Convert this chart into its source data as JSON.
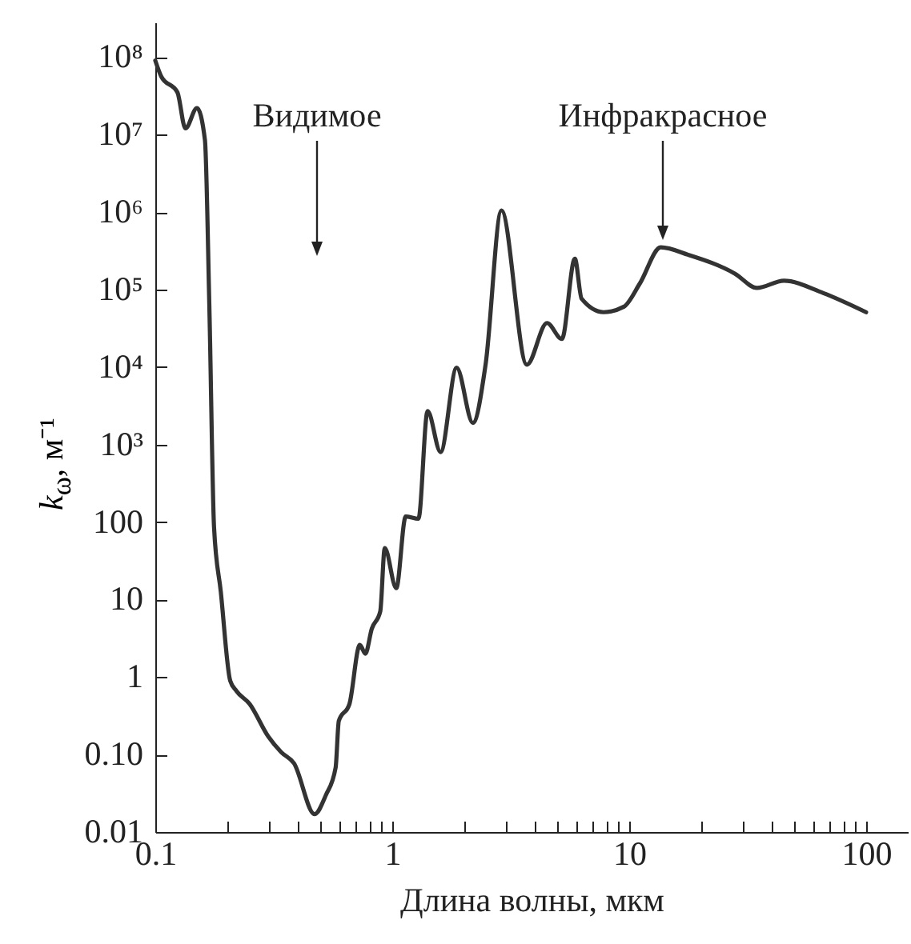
{
  "chart_data": {
    "type": "line",
    "xlabel": "Длина волны, мкм",
    "ylabel": "k$_{ω}$, м⁻¹",
    "log": "xy",
    "grid": false,
    "annotations": [
      "Видимое",
      "Инфракрасное"
    ],
    "xlim": [
      0.1,
      150
    ],
    "ylim": [
      0.01,
      280000000
    ],
    "xticks": [
      0.1,
      {
        "value": 0.2,
        "label": null
      },
      {
        "value": 0.3,
        "label": null
      },
      {
        "value": 0.4,
        "label": null
      },
      {
        "value": 0.5,
        "label": null
      },
      {
        "value": 0.6,
        "label": null
      },
      {
        "value": 0.7,
        "label": null
      },
      {
        "value": 0.8,
        "label": null
      },
      {
        "value": 0.9,
        "label": null
      },
      1,
      {
        "value": 2,
        "label": null
      },
      {
        "value": 3,
        "label": null
      },
      {
        "value": 4,
        "label": null
      },
      {
        "value": 5,
        "label": null
      },
      {
        "value": 6,
        "label": null
      },
      {
        "value": 7,
        "label": null
      },
      {
        "value": 8,
        "label": null
      },
      {
        "value": 9,
        "label": null
      },
      10,
      {
        "value": 20,
        "label": null
      },
      {
        "value": 30,
        "label": null
      },
      {
        "value": 40,
        "label": null
      },
      {
        "value": 50,
        "label": null
      },
      {
        "value": 60,
        "label": null
      },
      {
        "value": 70,
        "label": null
      },
      {
        "value": 80,
        "label": null
      },
      {
        "value": 90,
        "label": null
      },
      100
    ],
    "yticks": [
      0.01,
      {
        "value": 0.1,
        "label": "0.10"
      },
      1,
      10,
      100,
      {
        "value": 1000,
        "label": "10³"
      },
      {
        "value": 10000,
        "label": "10⁴"
      },
      {
        "value": 100000,
        "label": "10⁵"
      },
      {
        "value": 1000000,
        "label": "10⁶"
      },
      {
        "value": 10000000,
        "label": "10⁷"
      },
      {
        "value": 100000000,
        "label": "10⁸"
      }
    ],
    "series": [
      {
        "color": "#333333",
        "x": [
          0.1,
          0.106,
          0.124,
          0.134,
          0.15,
          0.162,
          0.169,
          0.177,
          0.189,
          0.207,
          0.22,
          0.25,
          0.3,
          0.34,
          0.385,
          0.47,
          0.525,
          0.577,
          0.595,
          0.66,
          0.73,
          0.77,
          0.82,
          0.89,
          0.93,
          1.04,
          1.14,
          1.29,
          1.41,
          1.6,
          1.87,
          2.19,
          2.48,
          2.89,
          3.7,
          4.5,
          5.2,
          5.9,
          6.3,
          7.8,
          9.5,
          11.1,
          13.6,
          17.8,
          28,
          34.6,
          45,
          66,
          100
        ],
        "values": [
          90000000,
          56000000,
          35000000,
          12000000,
          22000000,
          8500000,
          66000,
          85,
          12.6,
          0.9,
          0.66,
          0.45,
          0.17,
          0.107,
          0.077,
          0.017,
          0.03,
          0.068,
          0.27,
          0.45,
          2.6,
          2,
          4.2,
          7,
          46,
          14,
          118,
          110,
          2700,
          800,
          9800,
          1900,
          11000,
          1050000,
          10700,
          37000,
          23000,
          250000,
          76000,
          51000,
          60000,
          120000,
          350000,
          280000,
          160000,
          105000,
          130000,
          90000,
          51000
        ]
      }
    ]
  }
}
